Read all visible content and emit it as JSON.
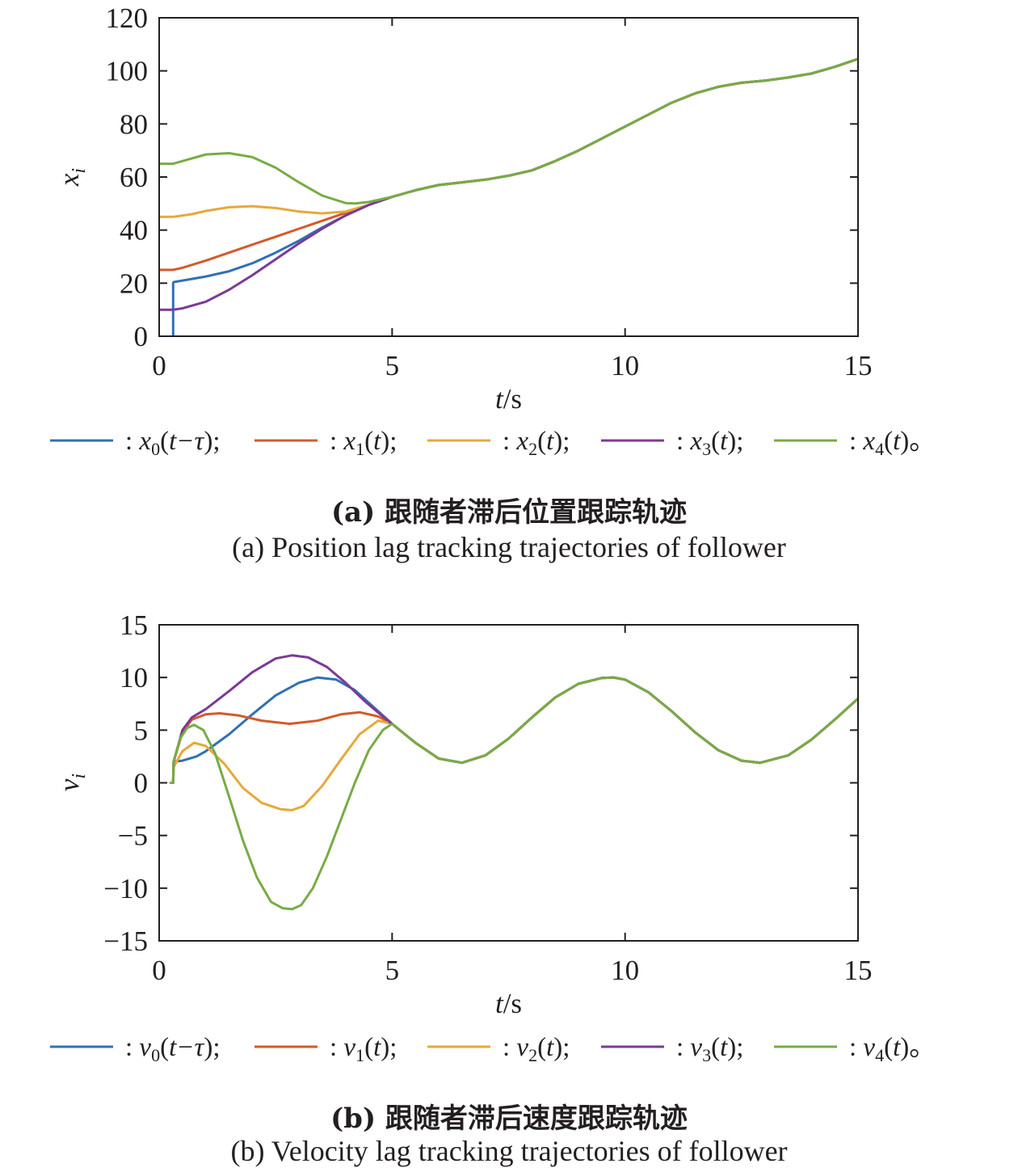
{
  "colors": {
    "blue": "#3071b5",
    "red": "#d45a2b",
    "yellow": "#e7a83a",
    "purple": "#7b3a96",
    "green": "#77ac45"
  },
  "chart_data": [
    {
      "type": "line",
      "title": "",
      "xlabel": "t/s",
      "ylabel": "x_i",
      "xlim": [
        0,
        15
      ],
      "ylim": [
        0,
        120
      ],
      "xticks": [
        "0",
        "5",
        "10",
        "15"
      ],
      "yticks": [
        "0",
        "20",
        "40",
        "60",
        "80",
        "100",
        "120"
      ],
      "caption_zh": "(a) 跟随者滞后位置跟踪轨迹",
      "caption_en": "(a) Position lag tracking trajectories of follower",
      "legend": [
        {
          "sym": "x",
          "sub": "0",
          "arg": "t−τ",
          "end": ";"
        },
        {
          "sym": "x",
          "sub": "1",
          "arg": "t",
          "end": ";"
        },
        {
          "sym": "x",
          "sub": "2",
          "arg": "t",
          "end": ";"
        },
        {
          "sym": "x",
          "sub": "3",
          "arg": "t",
          "end": ";"
        },
        {
          "sym": "x",
          "sub": "4",
          "arg": "t",
          "end": "。"
        }
      ],
      "series": [
        {
          "color": "blue",
          "x": [
            0.3,
            0.3,
            0.31,
            0.5,
            1.0,
            1.5,
            2.0,
            2.5,
            3.0,
            3.5,
            4.0,
            4.5,
            5.0,
            5.5,
            6.0,
            6.5,
            7.0,
            7.5,
            8.0,
            8.5,
            9.0,
            9.5,
            10.0,
            10.5,
            11.0,
            11.5,
            12.0,
            12.5,
            13.0,
            13.5,
            14.0,
            14.5,
            15.0
          ],
          "y": [
            0,
            20,
            20.4,
            21,
            22.5,
            24.5,
            27.5,
            31.5,
            36,
            41,
            45.5,
            49.5,
            52.5,
            55,
            57,
            58,
            59,
            60.5,
            62.5,
            66,
            70,
            74.5,
            79,
            83.5,
            88,
            91.5,
            94,
            95.5,
            96.3,
            97.5,
            99,
            101.5,
            104.5
          ]
        },
        {
          "color": "red",
          "x": [
            0,
            0.3,
            0.5,
            1.0,
            1.5,
            2.0,
            2.5,
            3.0,
            3.5,
            4.0,
            4.5,
            5.0,
            5.5,
            6.0,
            6.5,
            7.0,
            7.5,
            8.0,
            8.5,
            9.0,
            9.5,
            10.0,
            10.5,
            11.0,
            11.5,
            12.0,
            12.5,
            13.0,
            13.5,
            14.0,
            14.5,
            15.0
          ],
          "y": [
            25,
            25,
            25.8,
            28.5,
            31.5,
            34.5,
            37.5,
            40.5,
            43.5,
            46.5,
            49.5,
            52.5,
            55,
            57,
            58,
            59,
            60.5,
            62.5,
            66,
            70,
            74.5,
            79,
            83.5,
            88,
            91.5,
            94,
            95.5,
            96.3,
            97.5,
            99,
            101.5,
            104.5
          ]
        },
        {
          "color": "yellow",
          "x": [
            0,
            0.3,
            0.7,
            1.0,
            1.5,
            2.0,
            2.5,
            3.0,
            3.5,
            4.0,
            4.5,
            5.0,
            5.5,
            6.0,
            6.5,
            7.0,
            7.5,
            8.0,
            8.5,
            9.0,
            9.5,
            10.0,
            10.5,
            11.0,
            11.5,
            12.0,
            12.5,
            13.0,
            13.5,
            14.0,
            14.5,
            15.0
          ],
          "y": [
            45,
            45,
            46,
            47.2,
            48.6,
            49,
            48.3,
            47,
            46.3,
            47,
            49.5,
            52.5,
            55,
            57,
            58,
            59,
            60.5,
            62.5,
            66,
            70,
            74.5,
            79,
            83.5,
            88,
            91.5,
            94,
            95.5,
            96.3,
            97.5,
            99,
            101.5,
            104.5
          ]
        },
        {
          "color": "purple",
          "x": [
            0,
            0.3,
            0.5,
            1.0,
            1.5,
            2.0,
            2.5,
            3.0,
            3.5,
            4.0,
            4.5,
            5.0,
            5.5,
            6.0,
            6.5,
            7.0,
            7.5,
            8.0,
            8.5,
            9.0,
            9.5,
            10.0,
            10.5,
            11.0,
            11.5,
            12.0,
            12.5,
            13.0,
            13.5,
            14.0,
            14.5,
            15.0
          ],
          "y": [
            10,
            10,
            10.5,
            13,
            17.5,
            23,
            29,
            35,
            40.5,
            45.5,
            49.5,
            52.5,
            55,
            57,
            58,
            59,
            60.5,
            62.5,
            66,
            70,
            74.5,
            79,
            83.5,
            88,
            91.5,
            94,
            95.5,
            96.3,
            97.5,
            99,
            101.5,
            104.5
          ]
        },
        {
          "color": "green",
          "x": [
            0,
            0.3,
            0.5,
            1.0,
            1.5,
            2.0,
            2.5,
            3.0,
            3.5,
            4.0,
            4.2,
            4.5,
            5.0,
            5.5,
            6.0,
            6.5,
            7.0,
            7.5,
            8.0,
            8.5,
            9.0,
            9.5,
            10.0,
            10.5,
            11.0,
            11.5,
            12.0,
            12.5,
            13.0,
            13.5,
            14.0,
            14.5,
            15.0
          ],
          "y": [
            65,
            65,
            66,
            68.5,
            69,
            67.5,
            63.5,
            58,
            53,
            50.2,
            50,
            50.6,
            52.5,
            55,
            57,
            58,
            59,
            60.5,
            62.5,
            66,
            70,
            74.5,
            79,
            83.5,
            88,
            91.5,
            94,
            95.5,
            96.3,
            97.5,
            99,
            101.5,
            104.5
          ]
        }
      ]
    },
    {
      "type": "line",
      "title": "",
      "xlabel": "t/s",
      "ylabel": "v_i",
      "xlim": [
        0,
        15
      ],
      "ylim": [
        -15,
        15
      ],
      "xticks": [
        "0",
        "5",
        "10",
        "15"
      ],
      "yticks": [
        "−15",
        "−10",
        "−5",
        "0",
        "5",
        "10",
        "15"
      ],
      "caption_zh": "(b) 跟随者滞后速度跟踪轨迹",
      "caption_en": "(b) Velocity lag tracking trajectories of follower",
      "legend": [
        {
          "sym": "v",
          "sub": "0",
          "arg": "t−τ",
          "end": ";"
        },
        {
          "sym": "v",
          "sub": "1",
          "arg": "t",
          "end": ";"
        },
        {
          "sym": "v",
          "sub": "2",
          "arg": "t",
          "end": ";"
        },
        {
          "sym": "v",
          "sub": "3",
          "arg": "t",
          "end": ";"
        },
        {
          "sym": "v",
          "sub": "4",
          "arg": "t",
          "end": "。"
        }
      ],
      "series": [
        {
          "color": "blue",
          "x": [
            0.25,
            0.3,
            0.31,
            0.5,
            0.8,
            1.0,
            1.5,
            2.0,
            2.5,
            3.0,
            3.4,
            3.8,
            4.2,
            4.6,
            5.0,
            5.5,
            6.0,
            6.5,
            7.0,
            7.5,
            8.0,
            8.5,
            9.0,
            9.5,
            9.75,
            10.0,
            10.5,
            11.0,
            11.5,
            12.0,
            12.5,
            12.9,
            13.5,
            14.0,
            14.5,
            15.0
          ],
          "y": [
            0,
            0,
            2,
            2.1,
            2.5,
            3,
            4.6,
            6.5,
            8.3,
            9.5,
            10,
            9.8,
            8.8,
            7.2,
            5.6,
            3.8,
            2.3,
            1.9,
            2.6,
            4.2,
            6.2,
            8.1,
            9.4,
            9.95,
            10,
            9.8,
            8.6,
            6.8,
            4.8,
            3.1,
            2.1,
            1.9,
            2.6,
            4.1,
            6,
            8
          ]
        },
        {
          "color": "red",
          "x": [
            0.25,
            0.3,
            0.31,
            0.5,
            0.7,
            1.0,
            1.3,
            1.7,
            2.2,
            2.8,
            3.4,
            3.9,
            4.3,
            4.7,
            5.0,
            5.5,
            6.0,
            6.5,
            7.0,
            7.5,
            8.0,
            8.5,
            9.0,
            9.5,
            9.75,
            10.0,
            10.5,
            11.0,
            11.5,
            12.0,
            12.5,
            12.9,
            13.5,
            14.0,
            14.5,
            15.0
          ],
          "y": [
            0,
            0,
            2,
            4.8,
            6,
            6.5,
            6.6,
            6.4,
            5.9,
            5.6,
            5.9,
            6.5,
            6.7,
            6.3,
            5.6,
            3.8,
            2.3,
            1.9,
            2.6,
            4.2,
            6.2,
            8.1,
            9.4,
            9.95,
            10,
            9.8,
            8.6,
            6.8,
            4.8,
            3.1,
            2.1,
            1.9,
            2.6,
            4.1,
            6,
            8
          ]
        },
        {
          "color": "yellow",
          "x": [
            0.25,
            0.3,
            0.31,
            0.5,
            0.75,
            1.0,
            1.4,
            1.8,
            2.2,
            2.6,
            2.85,
            3.1,
            3.5,
            3.9,
            4.3,
            4.7,
            5.0,
            5.5,
            6.0,
            6.5,
            7.0,
            7.5,
            8.0,
            8.5,
            9.0,
            9.5,
            9.75,
            10.0,
            10.5,
            11.0,
            11.5,
            12.0,
            12.5,
            12.9,
            13.5,
            14.0,
            14.5,
            15.0
          ],
          "y": [
            0,
            0,
            1.5,
            3,
            3.8,
            3.5,
            1.8,
            -0.5,
            -1.9,
            -2.5,
            -2.6,
            -2.2,
            -0.3,
            2.2,
            4.6,
            5.9,
            5.6,
            3.8,
            2.3,
            1.9,
            2.6,
            4.2,
            6.2,
            8.1,
            9.4,
            9.95,
            10,
            9.8,
            8.6,
            6.8,
            4.8,
            3.1,
            2.1,
            1.9,
            2.6,
            4.1,
            6,
            8
          ]
        },
        {
          "color": "purple",
          "x": [
            0.25,
            0.3,
            0.31,
            0.5,
            0.7,
            1.0,
            1.5,
            2.0,
            2.5,
            2.85,
            3.2,
            3.6,
            4.0,
            4.4,
            4.8,
            5.0,
            5.5,
            6.0,
            6.5,
            7.0,
            7.5,
            8.0,
            8.5,
            9.0,
            9.5,
            9.75,
            10.0,
            10.5,
            11.0,
            11.5,
            12.0,
            12.5,
            12.9,
            13.5,
            14.0,
            14.5,
            15.0
          ],
          "y": [
            0,
            0,
            2,
            5,
            6.2,
            7,
            8.7,
            10.5,
            11.8,
            12.1,
            11.9,
            11,
            9.5,
            7.8,
            6.3,
            5.6,
            3.8,
            2.3,
            1.9,
            2.6,
            4.2,
            6.2,
            8.1,
            9.4,
            9.95,
            10,
            9.8,
            8.6,
            6.8,
            4.8,
            3.1,
            2.1,
            1.9,
            2.6,
            4.1,
            6,
            8
          ]
        },
        {
          "color": "green",
          "x": [
            0.25,
            0.3,
            0.31,
            0.45,
            0.6,
            0.75,
            0.95,
            1.2,
            1.5,
            1.8,
            2.1,
            2.4,
            2.65,
            2.85,
            3.05,
            3.3,
            3.6,
            3.9,
            4.2,
            4.5,
            4.8,
            5.0,
            5.5,
            6.0,
            6.5,
            7.0,
            7.5,
            8.0,
            8.5,
            9.0,
            9.5,
            9.75,
            10.0,
            10.5,
            11.0,
            11.5,
            12.0,
            12.5,
            12.9,
            13.5,
            14.0,
            14.5,
            15.0
          ],
          "y": [
            0,
            0,
            2,
            4.2,
            5.2,
            5.5,
            5,
            2.8,
            -1.3,
            -5.5,
            -9,
            -11.3,
            -11.9,
            -12,
            -11.6,
            -10,
            -7,
            -3.5,
            0,
            3.1,
            5,
            5.6,
            3.8,
            2.3,
            1.9,
            2.6,
            4.2,
            6.2,
            8.1,
            9.4,
            9.95,
            10,
            9.8,
            8.6,
            6.8,
            4.8,
            3.1,
            2.1,
            1.9,
            2.6,
            4.1,
            6,
            8
          ]
        }
      ]
    }
  ]
}
